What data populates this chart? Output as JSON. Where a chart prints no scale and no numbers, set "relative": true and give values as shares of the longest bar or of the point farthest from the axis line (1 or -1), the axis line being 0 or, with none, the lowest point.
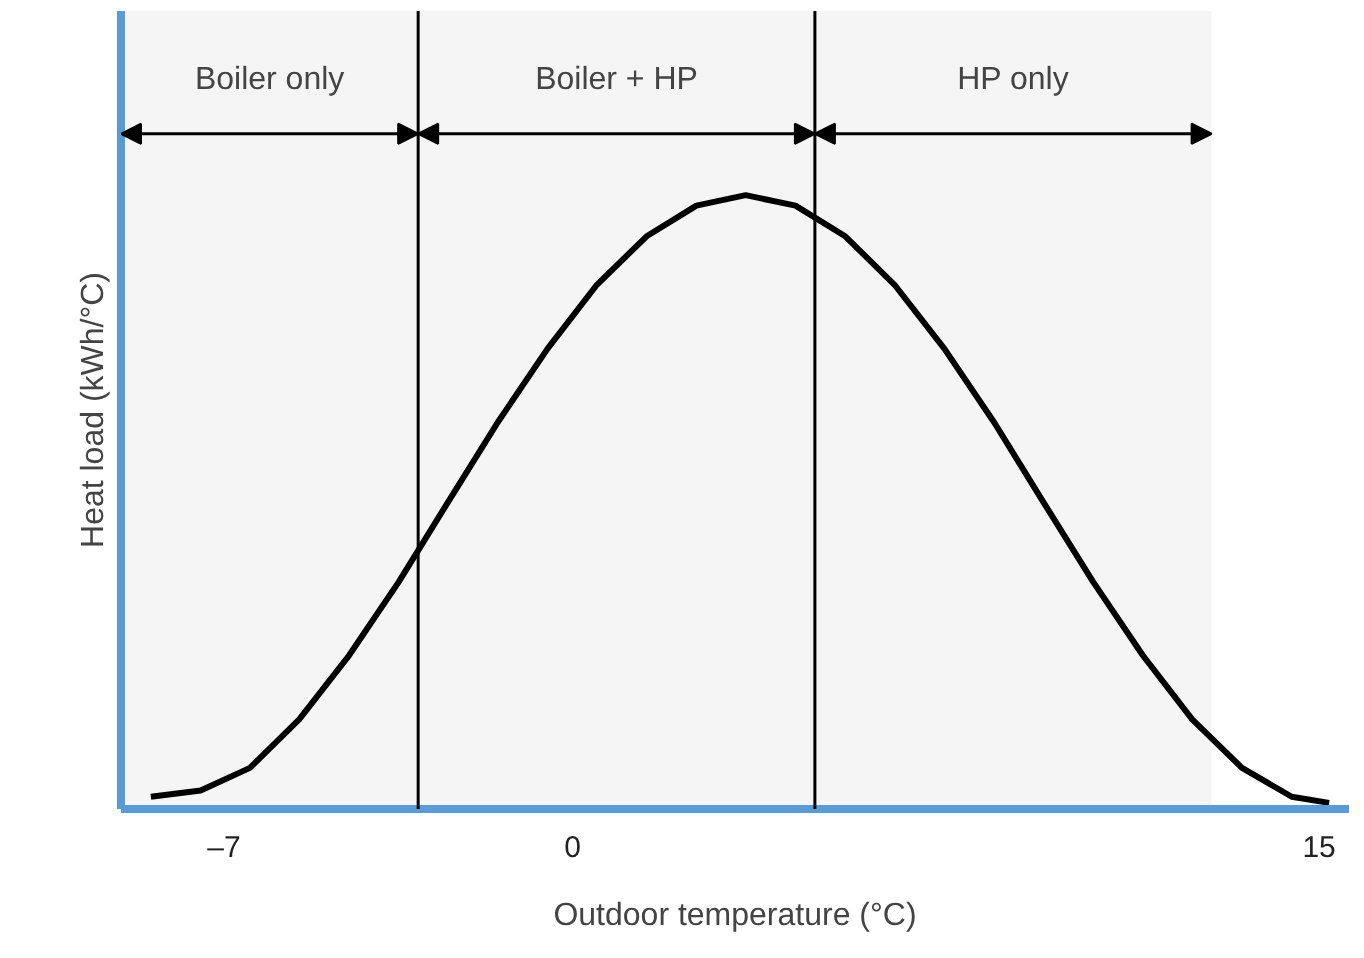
{
  "chart_data": {
    "type": "line",
    "xlabel": "Outdoor temperature (°C)",
    "ylabel": "Heat load (kWh/°C)",
    "relative": true,
    "x": [
      -8.47,
      -7.47,
      -6.48,
      -5.49,
      -4.49,
      -3.49,
      -2.5,
      -1.5,
      -0.5,
      0.49,
      1.49,
      2.49,
      3.48,
      4.48,
      5.48,
      6.47,
      7.47,
      8.47,
      9.46,
      10.46,
      11.46,
      12.45,
      13.45,
      14.45,
      15.2
    ],
    "series": [
      {
        "color": "#000000",
        "values": [
          0.02,
          0.03,
          0.067,
          0.146,
          0.25,
          0.37,
          0.5,
          0.63,
          0.75,
          0.854,
          0.933,
          0.983,
          1.0,
          0.983,
          0.933,
          0.854,
          0.75,
          0.63,
          0.5,
          0.37,
          0.25,
          0.146,
          0.067,
          0.02,
          0.01
        ]
      }
    ],
    "xlim": [
      -9.07,
      15.6
    ],
    "xticks": [
      {
        "value": -7,
        "label": "–7"
      },
      0,
      15
    ],
    "grid": false,
    "tick_labels": "x",
    "marker": "none",
    "line_style": "solid",
    "ref_lines": [
      {
        "axis": "x",
        "value": -3.1,
        "color": "#000000"
      },
      {
        "axis": "x",
        "value": 4.87,
        "color": "#000000"
      }
    ],
    "bands": [
      {
        "axis": "x",
        "from": -9.07,
        "to": -3.1,
        "label": "Boiler only",
        "color": "#f5f5f5"
      },
      {
        "axis": "x",
        "from": -3.1,
        "to": 4.87,
        "label": "Boiler + HP",
        "color": "#f5f5f5"
      },
      {
        "axis": "x",
        "from": 4.87,
        "to": 12.84,
        "label": "HP only",
        "color": "#f5f5f5"
      }
    ]
  }
}
